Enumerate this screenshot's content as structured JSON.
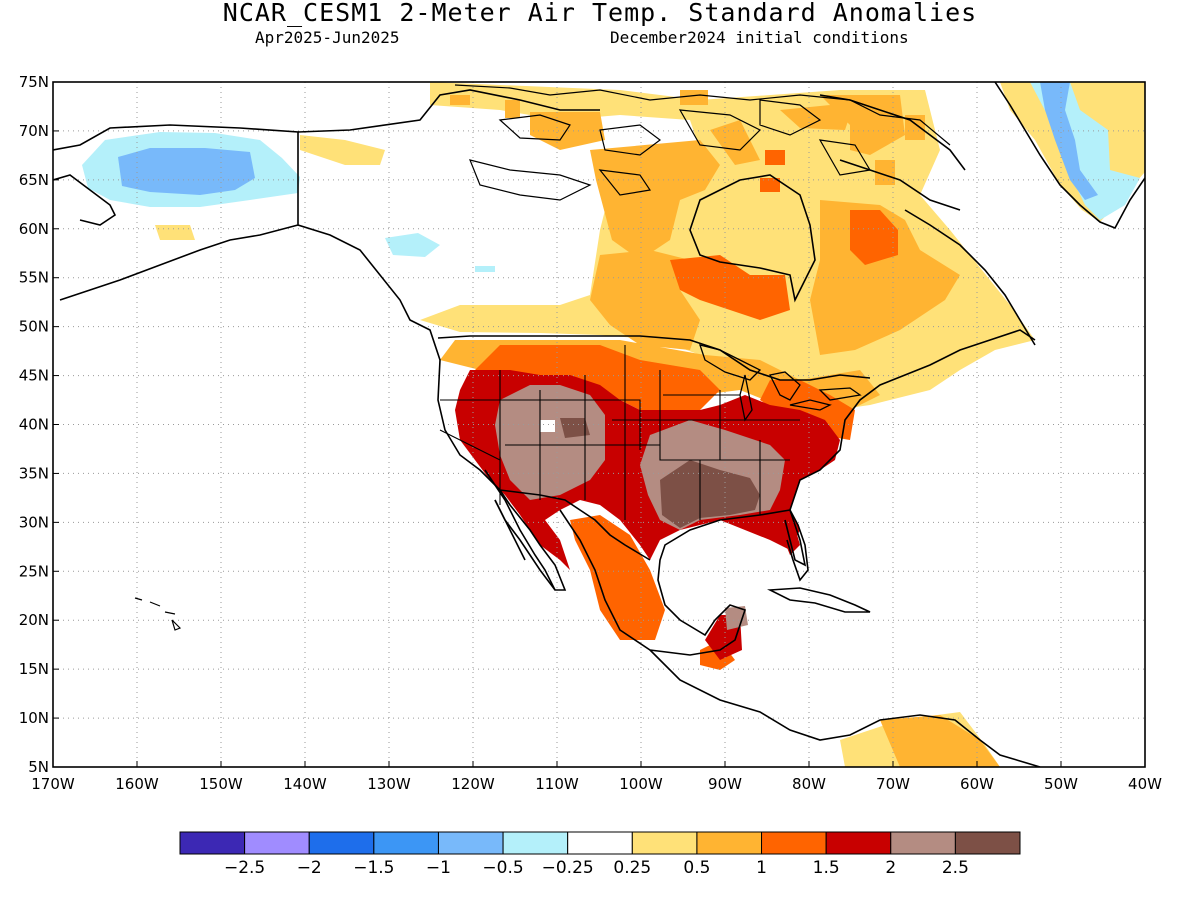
{
  "title": "NCAR_CESM1 2-Meter Air Temp. Standard Anomalies",
  "period": "Apr2025-Jun2025",
  "init": "December2024 initial conditions",
  "lat_labels": [
    "75N",
    "70N",
    "65N",
    "60N",
    "55N",
    "50N",
    "45N",
    "40N",
    "35N",
    "30N",
    "25N",
    "20N",
    "15N",
    "10N",
    "5N"
  ],
  "lon_labels": [
    "170W",
    "160W",
    "150W",
    "140W",
    "130W",
    "120W",
    "110W",
    "100W",
    "90W",
    "80W",
    "70W",
    "60W",
    "50W",
    "40W"
  ],
  "map_extent": {
    "lon_min": -170,
    "lon_max": -40,
    "lat_min": 5,
    "lat_max": 75
  },
  "colorbar": {
    "colors": [
      "#3c28b4",
      "#a08cff",
      "#1e6eeb",
      "#3c96f5",
      "#78b9fa",
      "#b4f0fa",
      "#ffffff",
      "#ffe178",
      "#ffb432",
      "#ff6400",
      "#c80000",
      "#b48c82",
      "#7d5046"
    ],
    "labels": [
      "-2.5",
      "-2",
      "-1.5",
      "-1",
      "-0.5",
      "-0.25",
      "0.25",
      "0.5",
      "1",
      "1.5",
      "2",
      "2.5"
    ]
  },
  "regions": {
    "alaska_interior": "-0.5 to -1",
    "northwest_canada": "-0.25 to -0.5",
    "greenland_west_coast": "-0.5 to -1",
    "central_canada": "0.25 to 1",
    "hudson_bay_east": "1 to 1.5",
    "great_lakes_midwest": "1 to 2",
    "western_us": "2 to 2.5",
    "southern_plains": "2 to above 2.5",
    "southeast_us": "1.5 to 2",
    "mexico": "0.5 to 2",
    "central_america": "0.25 to 2",
    "northern_south_america": "0.25 to 1.5"
  }
}
